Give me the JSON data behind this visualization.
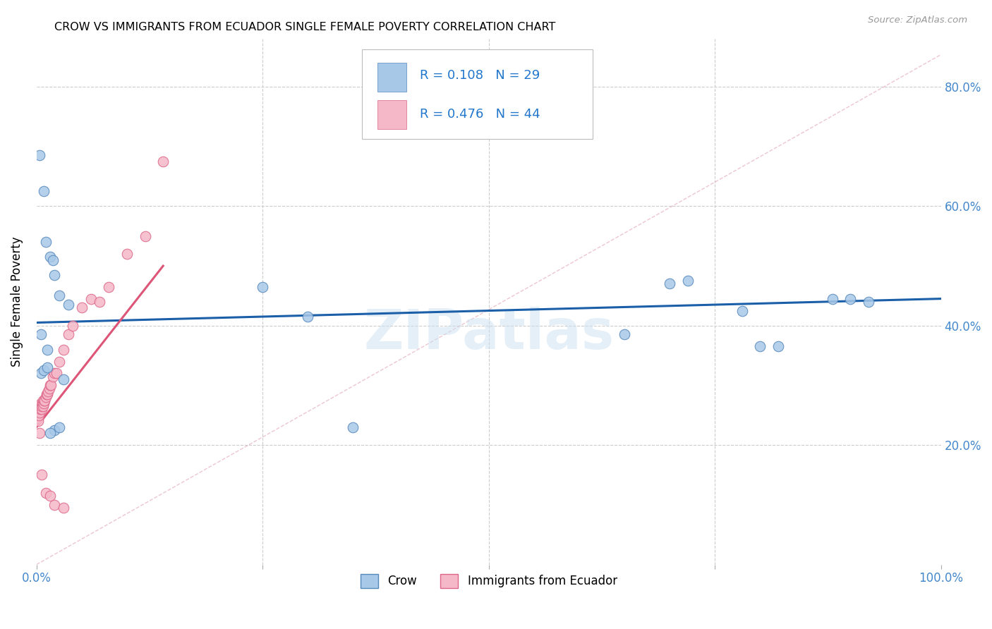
{
  "title": "CROW VS IMMIGRANTS FROM ECUADOR SINGLE FEMALE POVERTY CORRELATION CHART",
  "source": "Source: ZipAtlas.com",
  "ylabel": "Single Female Poverty",
  "legend_label1": "Crow",
  "legend_label2": "Immigrants from Ecuador",
  "r1": 0.108,
  "n1": 29,
  "r2": 0.476,
  "n2": 44,
  "color_crow_fill": "#a8c8e8",
  "color_crow_edge": "#5588bb",
  "color_ecuador_fill": "#f5b8c8",
  "color_ecuador_edge": "#dd6688",
  "color_line_crow": "#1a5fa8",
  "color_line_ecuador": "#dd5577",
  "color_diagonal": "#e0a0b0",
  "watermark": "ZIPatlas",
  "crow_x": [
    0.3,
    0.8,
    1.0,
    1.5,
    1.8,
    2.0,
    2.5,
    3.0,
    3.5,
    0.5,
    1.2,
    2.0,
    2.5,
    25.0,
    30.0,
    35.0,
    65.0,
    70.0,
    72.0,
    78.0,
    80.0,
    82.0,
    88.0,
    90.0,
    0.5,
    0.8,
    1.2,
    1.5,
    92.0
  ],
  "crow_y": [
    68.5,
    62.5,
    54.0,
    51.5,
    51.0,
    48.5,
    45.0,
    31.0,
    43.5,
    38.5,
    36.0,
    22.5,
    23.0,
    46.5,
    41.5,
    23.0,
    38.5,
    47.0,
    47.5,
    42.5,
    36.5,
    36.5,
    44.5,
    44.5,
    32.0,
    32.5,
    33.0,
    22.0,
    44.0
  ],
  "ecuador_x": [
    0.1,
    0.15,
    0.2,
    0.25,
    0.3,
    0.35,
    0.4,
    0.45,
    0.5,
    0.55,
    0.6,
    0.65,
    0.7,
    0.75,
    0.8,
    0.85,
    0.9,
    1.0,
    1.1,
    1.2,
    1.3,
    1.4,
    1.5,
    1.6,
    1.8,
    2.0,
    2.2,
    2.5,
    3.0,
    3.5,
    4.0,
    5.0,
    6.0,
    7.0,
    8.0,
    10.0,
    12.0,
    14.0,
    0.3,
    0.6,
    1.0,
    1.5,
    2.0,
    3.0
  ],
  "ecuador_y": [
    25.5,
    24.5,
    24.0,
    25.0,
    26.0,
    25.5,
    26.0,
    26.5,
    27.0,
    26.0,
    26.5,
    27.0,
    26.5,
    27.5,
    27.0,
    27.5,
    27.5,
    28.0,
    28.5,
    28.5,
    29.0,
    29.5,
    30.0,
    30.0,
    31.5,
    32.0,
    32.0,
    34.0,
    36.0,
    38.5,
    40.0,
    43.0,
    44.5,
    44.0,
    46.5,
    52.0,
    55.0,
    67.5,
    22.0,
    15.0,
    12.0,
    11.5,
    10.0,
    9.5
  ],
  "xlim": [
    0,
    100
  ],
  "ylim": [
    0,
    88
  ],
  "yticks": [
    20.0,
    40.0,
    60.0,
    80.0
  ],
  "ytick_labels": [
    "20.0%",
    "40.0%",
    "60.0%",
    "80.0%"
  ],
  "crow_trend_x": [
    0,
    100
  ],
  "crow_trend_y": [
    40.5,
    44.5
  ],
  "ecuador_trend_x0": 0,
  "ecuador_trend_y0": 23.0,
  "ecuador_trend_x1": 14,
  "ecuador_trend_y1": 50.0
}
